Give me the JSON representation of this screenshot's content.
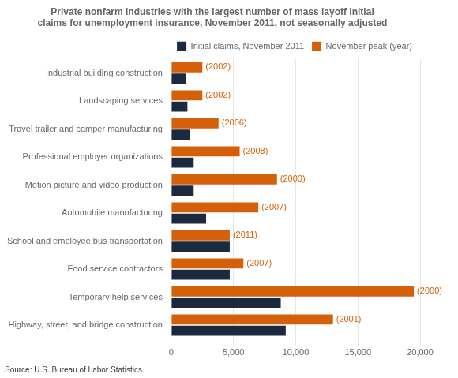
{
  "chart_data": {
    "type": "bar",
    "orientation": "horizontal",
    "title": [
      "Private nonfarm industries with the largest number of mass layoff initial",
      "claims for unemployment insurance, November 2011, not seasonally adjusted"
    ],
    "categories": [
      "Industrial building construction",
      "Landscaping services",
      "Travel trailer and camper manufacturing",
      "Professional employer organizations",
      "Motion picture and video production",
      "Automobile manufacturing",
      "School and employee bus transportation",
      "Food service contractors",
      "Temporary help services",
      "Highway, street, and bridge construction"
    ],
    "series": [
      {
        "name": "November peak (year)",
        "color": "#d4610a",
        "values": [
          2500,
          2500,
          3800,
          5500,
          8500,
          7000,
          4700,
          5800,
          19500,
          13000
        ],
        "point_labels": [
          "(2002)",
          "(2002)",
          "(2006)",
          "(2008)",
          "(2000)",
          "(2007)",
          "(2011)",
          "(2007)",
          "(2000)",
          "(2001)"
        ]
      },
      {
        "name": "Initial claims, November 2011",
        "color": "#1b2a3f",
        "values": [
          1200,
          1300,
          1500,
          1800,
          1800,
          2800,
          4700,
          4700,
          8800,
          9200
        ]
      }
    ],
    "xlim": [
      0,
      20000
    ],
    "xticks": [
      0,
      {
        "value": 5000,
        "label": "5,000"
      },
      {
        "value": 10000,
        "label": "10,000"
      },
      {
        "value": 15000,
        "label": "15,000"
      },
      {
        "value": 20000,
        "label": "20,000"
      }
    ],
    "grid": true,
    "legend": "upper right",
    "source": "Source: U.S. Bureau of Labor Statistics"
  }
}
